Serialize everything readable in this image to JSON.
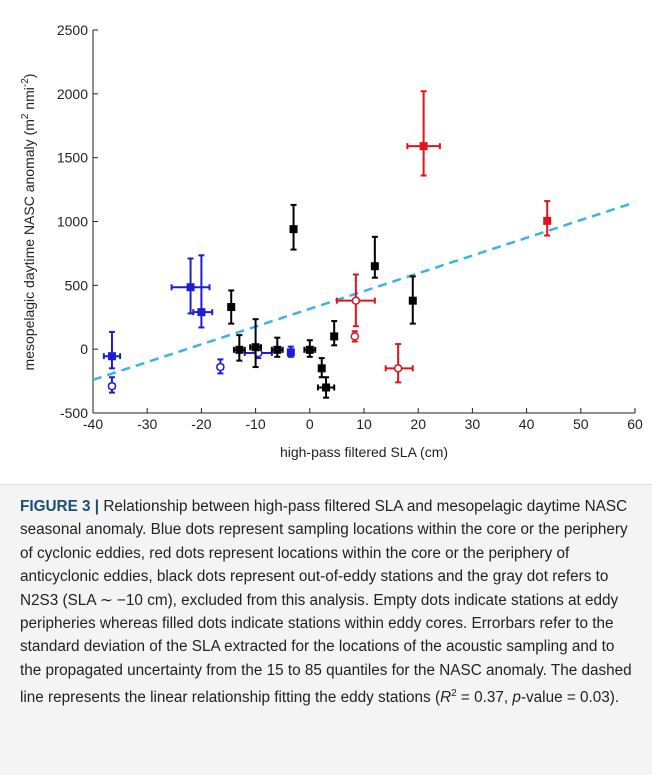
{
  "chart_data": {
    "type": "scatter",
    "xlabel": "high-pass filtered SLA (cm)",
    "ylabel": [
      "mesopelagic daytime NASC anomaly (m",
      "2",
      " nmi",
      "-2",
      ")"
    ],
    "xlim": [
      -40,
      60
    ],
    "xticks": [
      -40,
      -30,
      -20,
      -10,
      0,
      10,
      20,
      30,
      40,
      50,
      60
    ],
    "ylim": [
      -500,
      2500
    ],
    "yticks": [
      -500,
      0,
      500,
      1000,
      1500,
      2000,
      2500
    ],
    "fit": {
      "color": "#3ab4e2",
      "x": [
        -40,
        60
      ],
      "y": [
        -240,
        1150
      ]
    },
    "points": [
      {
        "x": -36.5,
        "y": -55,
        "x_lower": -38,
        "x_upper": -35,
        "y_lower": -150,
        "y_upper": 135,
        "color": "#1d1dd8",
        "filled": true
      },
      {
        "x": -36.5,
        "y": -290,
        "x_lower": -37,
        "x_upper": -36,
        "y_lower": -340,
        "y_upper": -220,
        "color": "#1d1dd8",
        "filled": false
      },
      {
        "x": -22,
        "y": 485,
        "x_lower": -25.5,
        "x_upper": -18.5,
        "y_lower": 280,
        "y_upper": 710,
        "color": "#1d1dd8",
        "filled": true
      },
      {
        "x": -20,
        "y": 290,
        "x_lower": -21.5,
        "x_upper": -18,
        "y_lower": 170,
        "y_upper": 735,
        "color": "#1d1dd8",
        "filled": true
      },
      {
        "x": -16.5,
        "y": -140,
        "x_lower": -17,
        "x_upper": -16,
        "y_lower": -190,
        "y_upper": -80,
        "color": "#1d1dd8",
        "filled": false
      },
      {
        "x": -9.5,
        "y": -30,
        "x_lower": -12,
        "x_upper": -7,
        "y_lower": -70,
        "y_upper": 20,
        "color": "#1d1dd8",
        "filled": false
      },
      {
        "x": -3.5,
        "y": -25,
        "x_lower": -4,
        "x_upper": -3,
        "y_lower": -60,
        "y_upper": 20,
        "color": "#1d1dd8",
        "filled": true
      },
      {
        "x": 21,
        "y": 1590,
        "x_lower": 18,
        "x_upper": 24,
        "y_lower": 1360,
        "y_upper": 2020,
        "color": "#e0141e",
        "filled": true
      },
      {
        "x": 43.8,
        "y": 1005,
        "x_lower": 43.5,
        "x_upper": 44.2,
        "y_lower": 890,
        "y_upper": 1160,
        "color": "#e0141e",
        "filled": true
      },
      {
        "x": 8.5,
        "y": 380,
        "x_lower": 5,
        "x_upper": 12,
        "y_lower": 180,
        "y_upper": 585,
        "color": "#e0141e",
        "filled": false
      },
      {
        "x": 8.3,
        "y": 100,
        "x_lower": 8,
        "x_upper": 8.6,
        "y_lower": 60,
        "y_upper": 140,
        "color": "#e0141e",
        "filled": false
      },
      {
        "x": 16.3,
        "y": -150,
        "x_lower": 14,
        "x_upper": 19,
        "y_lower": -260,
        "y_upper": 40,
        "color": "#e0141e",
        "filled": false
      },
      {
        "x": -14.5,
        "y": 330,
        "x_lower": -15,
        "x_upper": -14,
        "y_lower": 200,
        "y_upper": 460,
        "color": "#000000",
        "filled": true
      },
      {
        "x": -13,
        "y": -5,
        "x_lower": -14,
        "x_upper": -12,
        "y_lower": -90,
        "y_upper": 110,
        "color": "#000000",
        "filled": true
      },
      {
        "x": -10,
        "y": 15,
        "x_lower": -11,
        "x_upper": -9,
        "y_lower": -140,
        "y_upper": 235,
        "color": "#000000",
        "filled": true
      },
      {
        "x": -6,
        "y": -5,
        "x_lower": -7,
        "x_upper": -5,
        "y_lower": -60,
        "y_upper": 90,
        "color": "#000000",
        "filled": true
      },
      {
        "x": -3,
        "y": 940,
        "x_lower": -3.5,
        "x_upper": -2.5,
        "y_lower": 780,
        "y_upper": 1130,
        "color": "#000000",
        "filled": true
      },
      {
        "x": 0,
        "y": -5,
        "x_lower": -1,
        "x_upper": 1,
        "y_lower": -60,
        "y_upper": 70,
        "color": "#000000",
        "filled": true
      },
      {
        "x": 2.2,
        "y": -150,
        "x_lower": 1.8,
        "x_upper": 2.6,
        "y_lower": -220,
        "y_upper": -70,
        "color": "#000000",
        "filled": true
      },
      {
        "x": 3,
        "y": -300,
        "x_lower": 1.5,
        "x_upper": 4.5,
        "y_lower": -380,
        "y_upper": -220,
        "color": "#000000",
        "filled": true
      },
      {
        "x": 4.5,
        "y": 100,
        "x_lower": 4,
        "x_upper": 5,
        "y_lower": 30,
        "y_upper": 220,
        "color": "#000000",
        "filled": true
      },
      {
        "x": 12,
        "y": 650,
        "x_lower": 11.5,
        "x_upper": 12.5,
        "y_lower": 560,
        "y_upper": 880,
        "color": "#000000",
        "filled": true
      },
      {
        "x": 19,
        "y": 380,
        "x_lower": 18.5,
        "x_upper": 19.5,
        "y_lower": 200,
        "y_upper": 570,
        "color": "#000000",
        "filled": true
      }
    ]
  },
  "caption": {
    "label": "FIGURE 3 |",
    "text": " Relationship between high-pass filtered SLA and mesopelagic daytime NASC seasonal anomaly. Blue dots represent sampling locations within the core or the periphery of cyclonic eddies, red dots represent locations within the core or the periphery of anticyclonic eddies, black dots represent out-of-eddy stations and the gray dot refers to N2S3 (SLA ∼ −10 cm), excluded from this analysis. Empty dots indicate stations at eddy peripheries whereas filled dots indicate stations within eddy cores. Errorbars refer to the standard deviation of the SLA extracted for the locations of the acoustic sampling and to the propagated uncertainty from the 15 to 85 quantiles for the NASC anomaly. The dashed line represents the linear relationship fitting the eddy stations (",
    "r": "R",
    "r_sup": "2",
    "after_r": " = 0.37, ",
    "p": "p",
    "after_p": "-value = 0.03)."
  }
}
